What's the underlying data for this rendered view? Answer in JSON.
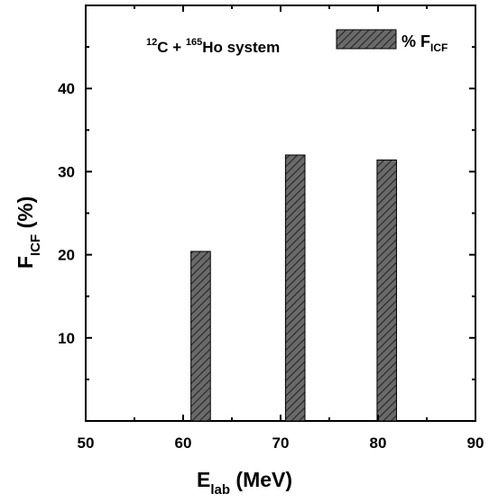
{
  "chart_data": {
    "type": "bar",
    "x": [
      61.8,
      71.5,
      80.9
    ],
    "values": [
      20.4,
      32.0,
      31.4
    ],
    "xlim": [
      50,
      90
    ],
    "ylim": [
      0,
      50
    ],
    "xticks": [
      50,
      60,
      70,
      80,
      90
    ],
    "yticks": [
      10,
      20,
      30,
      40
    ],
    "bar_width": 2,
    "xlabel": {
      "main": "E",
      "sub": "lab",
      "rest": " (MeV)"
    },
    "ylabel": {
      "main": "F",
      "sub": "ICF",
      "rest": " (%)"
    },
    "annotation": {
      "sup1": "12",
      "t1": "C + ",
      "sup2": "165",
      "t2": "Ho system"
    },
    "legend": {
      "label_main": "% F",
      "label_sub": "ICF",
      "placement": "top-right"
    },
    "grid": false,
    "bar_fill": "#5a5a5a",
    "hatch": "diagonal"
  }
}
